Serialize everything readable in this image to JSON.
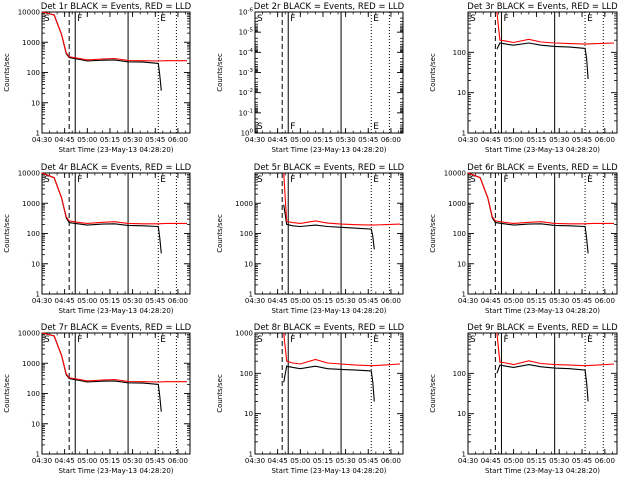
{
  "chart_data": [
    {
      "type": "line",
      "panel": "1r",
      "title": "Det 1r BLACK = Events, RED = LLD",
      "ylabel": "Counts/sec",
      "xlabel": "Start Time (23-May-13 04:28:20)",
      "yscale": "log",
      "ylim": [
        1,
        10000
      ],
      "ytick_labels": [
        "1",
        "10",
        "100",
        "1000",
        "10000"
      ],
      "xlim": [
        "04:30",
        "06:08"
      ],
      "xtick_labels": [
        "04:30",
        "04:45",
        "05:00",
        "05:15",
        "05:30",
        "05:45",
        "06:00"
      ],
      "markers": [
        "S",
        "F",
        "E"
      ],
      "vlines": {
        "dashed": [
          "04:48"
        ],
        "solid": [
          "04:52",
          "05:27"
        ],
        "dotted": [
          "05:47",
          "05:59"
        ]
      },
      "series": [
        {
          "name": "Events",
          "color": "#000000",
          "x": [
            "04:30",
            "04:38",
            "04:43",
            "04:46",
            "04:48",
            "04:55",
            "05:00",
            "05:10",
            "05:18",
            "05:27",
            "05:37",
            "05:47",
            "05:48",
            "05:49"
          ],
          "y": [
            10000,
            8000,
            1800,
            420,
            310,
            270,
            240,
            255,
            260,
            225,
            220,
            200,
            80,
            25
          ]
        },
        {
          "name": "LLD",
          "color": "#ff0000",
          "x": [
            "04:30",
            "04:38",
            "04:43",
            "04:46",
            "04:48",
            "04:55",
            "05:00",
            "05:10",
            "05:18",
            "05:27",
            "05:37",
            "05:47",
            "05:52",
            "06:06"
          ],
          "y": [
            10000,
            8000,
            1800,
            450,
            330,
            290,
            260,
            280,
            290,
            250,
            245,
            240,
            245,
            245
          ]
        }
      ]
    },
    {
      "type": "line",
      "panel": "2r",
      "title": "Det 2r BLACK = Events, RED = LLD",
      "ylabel": "Counts/sec",
      "xlabel": "Start Time (23-May-13 04:28:20)",
      "yscale": "log",
      "ylim": [
        1,
        1e-06
      ],
      "ytick_labels": [
        "10^0",
        "10^-1",
        "10^-2",
        "10^-3",
        "10^-4",
        "10^-5",
        "10^-6"
      ],
      "xlim": [
        "04:30",
        "06:08"
      ],
      "xtick_labels": [
        "04:30",
        "04:45",
        "05:00",
        "05:15",
        "05:30",
        "05:45",
        "06:00"
      ],
      "markers": [
        "S",
        "F",
        "E"
      ],
      "vlines": {
        "dashed": [
          "04:48"
        ],
        "solid": [
          "04:52",
          "05:27"
        ],
        "dotted": [
          "05:47",
          "05:59"
        ]
      },
      "series": []
    },
    {
      "type": "line",
      "panel": "3r",
      "title": "Det 3r BLACK = Events, RED = LLD",
      "ylabel": "Counts/sec",
      "xlabel": "Start Time (23-May-13 04:28:20)",
      "yscale": "log",
      "ylim": [
        1,
        1000
      ],
      "ytick_labels": [
        "1",
        "10",
        "100"
      ],
      "xlim": [
        "04:30",
        "06:08"
      ],
      "xtick_labels": [
        "04:30",
        "04:45",
        "05:00",
        "05:15",
        "05:30",
        "05:45",
        "06:00"
      ],
      "markers": [
        "S",
        "F",
        "E"
      ],
      "vlines": {
        "dashed": [
          "04:48"
        ],
        "solid": [
          "04:52",
          "05:27"
        ],
        "dotted": [
          "05:47",
          "05:59"
        ]
      },
      "series": [
        {
          "name": "Events",
          "color": "#000000",
          "x": [
            "04:49",
            "04:51",
            "04:55",
            "05:00",
            "05:10",
            "05:18",
            "05:27",
            "05:37",
            "05:47",
            "05:48",
            "05:49"
          ],
          "y": [
            120,
            170,
            160,
            150,
            170,
            150,
            140,
            135,
            125,
            70,
            22
          ]
        },
        {
          "name": "LLD",
          "color": "#ff0000",
          "x": [
            "04:49",
            "04:51",
            "04:55",
            "05:00",
            "05:10",
            "05:18",
            "05:27",
            "05:37",
            "05:47",
            "05:55",
            "06:06"
          ],
          "y": [
            1000,
            200,
            190,
            175,
            210,
            180,
            170,
            165,
            160,
            165,
            170
          ]
        }
      ]
    },
    {
      "type": "line",
      "panel": "4r",
      "title": "Det 4r BLACK = Events, RED = LLD",
      "ylabel": "Counts/sec",
      "xlabel": "Start Time (23-May-13 04:28:20)",
      "yscale": "log",
      "ylim": [
        1,
        10000
      ],
      "ytick_labels": [
        "1",
        "10",
        "100",
        "1000",
        "10000"
      ],
      "xlim": [
        "04:30",
        "06:08"
      ],
      "xtick_labels": [
        "04:30",
        "04:45",
        "05:00",
        "05:15",
        "05:30",
        "05:45",
        "06:00"
      ],
      "markers": [
        "S",
        "F",
        "E"
      ],
      "vlines": {
        "dashed": [
          "04:48"
        ],
        "solid": [
          "04:52",
          "05:27"
        ],
        "dotted": [
          "05:47",
          "05:59"
        ]
      },
      "series": [
        {
          "name": "Events",
          "color": "#000000",
          "x": [
            "04:30",
            "04:38",
            "04:43",
            "04:46",
            "04:48",
            "04:55",
            "05:00",
            "05:10",
            "05:18",
            "05:27",
            "05:37",
            "05:47",
            "05:48",
            "05:49"
          ],
          "y": [
            10000,
            7000,
            1500,
            330,
            230,
            205,
            190,
            205,
            210,
            185,
            180,
            170,
            70,
            22
          ]
        },
        {
          "name": "LLD",
          "color": "#ff0000",
          "x": [
            "04:30",
            "04:38",
            "04:43",
            "04:46",
            "04:48",
            "04:55",
            "05:00",
            "05:10",
            "05:18",
            "05:27",
            "05:37",
            "05:47",
            "05:52",
            "06:06"
          ],
          "y": [
            10000,
            7000,
            1500,
            360,
            260,
            230,
            215,
            235,
            245,
            215,
            210,
            210,
            215,
            215
          ]
        }
      ]
    },
    {
      "type": "line",
      "panel": "5r",
      "title": "Det 5r BLACK = Events, RED = LLD",
      "ylabel": "Counts/sec",
      "xlabel": "Start Time (23-May-13 04:28:20)",
      "yscale": "log",
      "ylim": [
        1,
        10000
      ],
      "ytick_labels": [
        "1",
        "10",
        "100",
        "1000"
      ],
      "xlim": [
        "04:30",
        "06:08"
      ],
      "xtick_labels": [
        "04:30",
        "04:45",
        "05:00",
        "05:15",
        "05:30",
        "05:45",
        "06:00"
      ],
      "markers": [
        "S",
        "F",
        "E"
      ],
      "vlines": {
        "dashed": [
          "04:48"
        ],
        "solid": [
          "04:52",
          "05:27"
        ],
        "dotted": [
          "05:47",
          "05:59"
        ]
      },
      "series": [
        {
          "name": "Events",
          "color": "#000000",
          "x": [
            "04:49",
            "04:51",
            "04:55",
            "05:00",
            "05:10",
            "05:18",
            "05:27",
            "05:37",
            "05:47",
            "05:48",
            "05:49"
          ],
          "y": [
            900,
            200,
            180,
            170,
            190,
            170,
            160,
            150,
            140,
            80,
            30
          ]
        },
        {
          "name": "LLD",
          "color": "#ff0000",
          "x": [
            "04:49",
            "04:51",
            "04:55",
            "05:00",
            "05:10",
            "05:18",
            "05:27",
            "05:37",
            "05:47",
            "05:55",
            "06:06"
          ],
          "y": [
            10000,
            250,
            230,
            215,
            260,
            220,
            205,
            195,
            190,
            195,
            205
          ]
        }
      ]
    },
    {
      "type": "line",
      "panel": "6r",
      "title": "Det 6r BLACK = Events, RED = LLD",
      "ylabel": "Counts/sec",
      "xlabel": "Start Time (23-May-13 04:28:20)",
      "yscale": "log",
      "ylim": [
        1,
        10000
      ],
      "ytick_labels": [
        "1",
        "10",
        "100",
        "1000",
        "10000"
      ],
      "xlim": [
        "04:30",
        "06:08"
      ],
      "xtick_labels": [
        "04:30",
        "04:45",
        "05:00",
        "05:15",
        "05:30",
        "05:45",
        "06:00"
      ],
      "markers": [
        "S",
        "F",
        "E"
      ],
      "vlines": {
        "dashed": [
          "04:48"
        ],
        "solid": [
          "04:52",
          "05:27"
        ],
        "dotted": [
          "05:47",
          "05:59"
        ]
      },
      "series": [
        {
          "name": "Events",
          "color": "#000000",
          "x": [
            "04:30",
            "04:38",
            "04:43",
            "04:46",
            "04:48",
            "04:55",
            "05:00",
            "05:10",
            "05:18",
            "05:27",
            "05:37",
            "05:47",
            "05:48",
            "05:49"
          ],
          "y": [
            10000,
            7000,
            1500,
            330,
            230,
            205,
            190,
            205,
            210,
            185,
            180,
            170,
            70,
            22
          ]
        },
        {
          "name": "LLD",
          "color": "#ff0000",
          "x": [
            "04:30",
            "04:38",
            "04:43",
            "04:46",
            "04:48",
            "04:55",
            "05:00",
            "05:10",
            "05:18",
            "05:27",
            "05:37",
            "05:47",
            "05:52",
            "06:06"
          ],
          "y": [
            10000,
            7000,
            1500,
            360,
            260,
            230,
            215,
            235,
            245,
            215,
            210,
            210,
            215,
            215
          ]
        }
      ]
    },
    {
      "type": "line",
      "panel": "7r",
      "title": "Det 7r BLACK = Events, RED = LLD",
      "ylabel": "Counts/sec",
      "xlabel": "Start Time (23-May-13 04:28:20)",
      "yscale": "log",
      "ylim": [
        1,
        10000
      ],
      "ytick_labels": [
        "1",
        "10",
        "100",
        "1000",
        "10000"
      ],
      "xlim": [
        "04:30",
        "06:08"
      ],
      "xtick_labels": [
        "04:30",
        "04:45",
        "05:00",
        "05:15",
        "05:30",
        "05:45",
        "06:00"
      ],
      "markers": [
        "S",
        "F",
        "E"
      ],
      "vlines": {
        "dashed": [
          "04:48"
        ],
        "solid": [
          "04:52",
          "05:27"
        ],
        "dotted": [
          "05:47",
          "05:59"
        ]
      },
      "series": [
        {
          "name": "Events",
          "color": "#000000",
          "x": [
            "04:30",
            "04:38",
            "04:43",
            "04:46",
            "04:48",
            "04:55",
            "05:00",
            "05:10",
            "05:18",
            "05:27",
            "05:37",
            "05:47",
            "05:48",
            "05:49"
          ],
          "y": [
            10000,
            8000,
            1800,
            420,
            310,
            270,
            240,
            255,
            260,
            225,
            220,
            200,
            80,
            25
          ]
        },
        {
          "name": "LLD",
          "color": "#ff0000",
          "x": [
            "04:30",
            "04:38",
            "04:43",
            "04:46",
            "04:48",
            "04:55",
            "05:00",
            "05:10",
            "05:18",
            "05:27",
            "05:37",
            "05:47",
            "05:52",
            "06:06"
          ],
          "y": [
            10000,
            8000,
            1800,
            450,
            330,
            290,
            260,
            280,
            290,
            250,
            245,
            240,
            245,
            245
          ]
        }
      ]
    },
    {
      "type": "line",
      "panel": "8r",
      "title": "Det 8r BLACK = Events, RED = LLD",
      "ylabel": "Counts/sec",
      "xlabel": "Start Time (23-May-13 04:28:20)",
      "yscale": "log",
      "ylim": [
        1,
        1000
      ],
      "ytick_labels": [
        "1",
        "10",
        "100",
        "1000"
      ],
      "xlim": [
        "04:30",
        "06:08"
      ],
      "xtick_labels": [
        "04:30",
        "04:45",
        "05:00",
        "05:15",
        "05:30",
        "05:45",
        "06:00"
      ],
      "markers": [
        "S",
        "F",
        "E"
      ],
      "vlines": {
        "dashed": [
          "04:48"
        ],
        "solid": [
          "04:52",
          "05:27"
        ],
        "dotted": [
          "05:47",
          "05:59"
        ]
      },
      "series": [
        {
          "name": "Events",
          "color": "#000000",
          "x": [
            "04:49",
            "04:51",
            "04:55",
            "05:00",
            "05:10",
            "05:18",
            "05:27",
            "05:37",
            "05:47",
            "05:48",
            "05:49"
          ],
          "y": [
            60,
            150,
            140,
            130,
            150,
            130,
            125,
            120,
            115,
            60,
            20
          ]
        },
        {
          "name": "LLD",
          "color": "#ff0000",
          "x": [
            "04:49",
            "04:51",
            "04:55",
            "05:00",
            "05:10",
            "05:18",
            "05:27",
            "05:37",
            "05:47",
            "05:55",
            "06:06"
          ],
          "y": [
            1000,
            200,
            180,
            170,
            220,
            180,
            170,
            160,
            155,
            160,
            170
          ]
        }
      ]
    },
    {
      "type": "line",
      "panel": "9r",
      "title": "Det 9r BLACK = Events, RED = LLD",
      "ylabel": "Counts/sec",
      "xlabel": "Start Time (23-May-13 04:28:20)",
      "yscale": "log",
      "ylim": [
        1,
        1000
      ],
      "ytick_labels": [
        "1",
        "10",
        "100"
      ],
      "xlim": [
        "04:30",
        "06:08"
      ],
      "xtick_labels": [
        "04:30",
        "04:45",
        "05:00",
        "05:15",
        "05:30",
        "05:45",
        "06:00"
      ],
      "markers": [
        "S",
        "F",
        "E"
      ],
      "vlines": {
        "dashed": [
          "04:48"
        ],
        "solid": [
          "04:52",
          "05:27"
        ],
        "dotted": [
          "05:47",
          "05:59"
        ]
      },
      "series": [
        {
          "name": "Events",
          "color": "#000000",
          "x": [
            "04:49",
            "04:51",
            "04:55",
            "05:00",
            "05:10",
            "05:18",
            "05:27",
            "05:37",
            "05:47",
            "05:48",
            "05:49"
          ],
          "y": [
            100,
            160,
            150,
            140,
            165,
            145,
            135,
            130,
            120,
            60,
            20
          ]
        },
        {
          "name": "LLD",
          "color": "#ff0000",
          "x": [
            "04:49",
            "04:51",
            "04:55",
            "05:00",
            "05:10",
            "05:18",
            "05:27",
            "05:37",
            "05:47",
            "05:55",
            "06:06"
          ],
          "y": [
            1000,
            190,
            180,
            165,
            205,
            175,
            165,
            160,
            155,
            160,
            170
          ]
        }
      ]
    }
  ]
}
